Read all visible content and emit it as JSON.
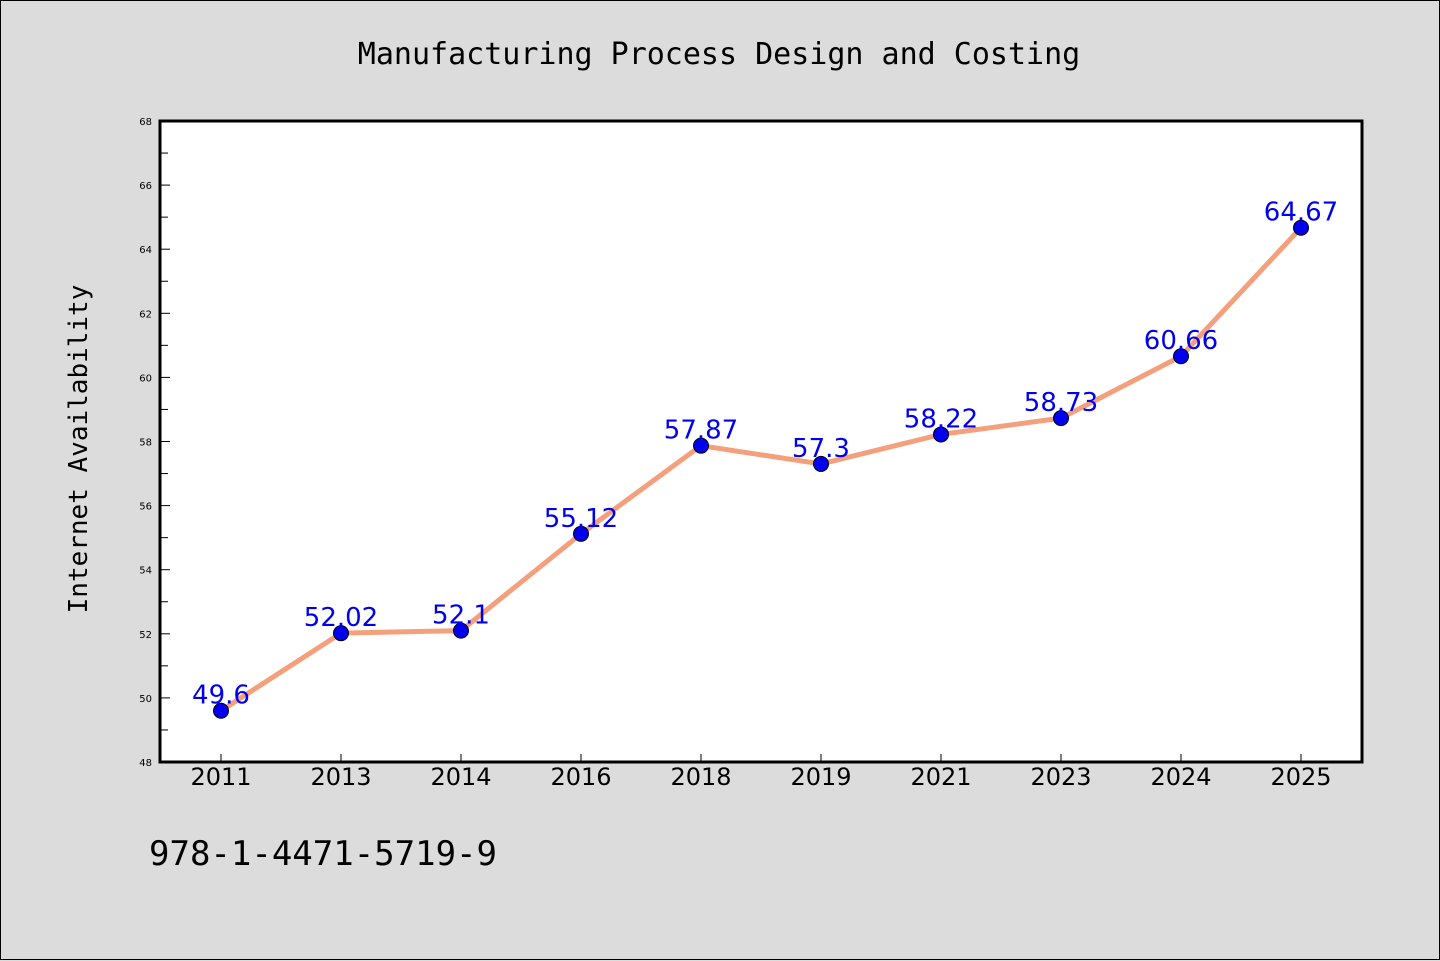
{
  "chart_data": {
    "type": "line",
    "title": "Manufacturing Process Design and Costing",
    "xlabel": "",
    "ylabel": "Internet Availability",
    "categories": [
      "2011",
      "2013",
      "2014",
      "2016",
      "2018",
      "2019",
      "2021",
      "2023",
      "2024",
      "2025"
    ],
    "values": [
      49.6,
      52.02,
      52.1,
      55.12,
      57.87,
      57.3,
      58.22,
      58.73,
      60.66,
      64.67
    ],
    "value_labels": [
      "49.6",
      "52.02",
      "52.1",
      "55.12",
      "57.87",
      "57.3",
      "58.22",
      "58.73",
      "60.66",
      "64.67"
    ],
    "ylim": [
      48,
      68
    ],
    "y_ticks": [
      "48",
      "50",
      "52",
      "54",
      "56",
      "58",
      "60",
      "62",
      "64",
      "66",
      "68"
    ],
    "grid": false,
    "legend": "none",
    "colors": {
      "line": "#f4a07c",
      "marker": "#0000ee",
      "data_label": "#0000ee",
      "background": "#dcdcdc",
      "plot_background": "#ffffff"
    }
  },
  "footer": {
    "isbn": "978-1-4471-5719-9"
  }
}
